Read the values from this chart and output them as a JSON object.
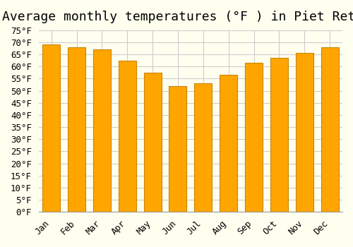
{
  "title": "Average monthly temperatures (°F ) in Piet Retief",
  "months": [
    "Jan",
    "Feb",
    "Mar",
    "Apr",
    "May",
    "Jun",
    "Jul",
    "Aug",
    "Sep",
    "Oct",
    "Nov",
    "Dec"
  ],
  "values": [
    69.0,
    68.0,
    67.0,
    62.5,
    57.5,
    52.0,
    53.0,
    56.5,
    61.5,
    63.5,
    65.5,
    68.0
  ],
  "bar_color": "#FFA500",
  "bar_edge_color": "#CC8400",
  "background_color": "#FFFFF0",
  "grid_color": "#CCCCCC",
  "ylim": [
    0,
    75
  ],
  "ytick_step": 5,
  "title_fontsize": 13,
  "tick_fontsize": 9,
  "font_family": "monospace"
}
